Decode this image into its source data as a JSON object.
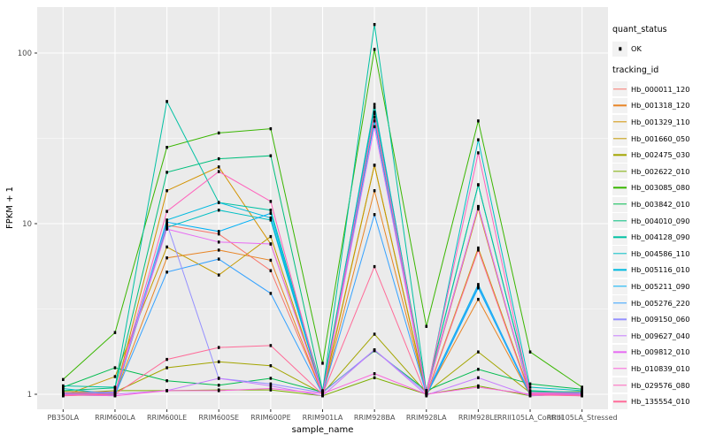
{
  "chart_data": {
    "type": "line",
    "title": "",
    "xlabel": "sample_name",
    "ylabel": "FPKM + 1",
    "y_scale": "log10",
    "y_ticks": [
      "1",
      "10",
      "100"
    ],
    "y_tick_values": [
      1,
      10,
      100
    ],
    "y_minor_values": [
      3.162,
      31.62
    ],
    "ylim": [
      0.82,
      184
    ],
    "grid": "on",
    "legend_position": "right",
    "panel_background": "#ebebeb",
    "gridline_color": "#ffffff",
    "tick_label_color": "#4d4d4d",
    "point_color": "#000000",
    "x_categories": [
      "PB350LA",
      "RRIM600LA",
      "RRIM600LE",
      "RRIM600SE",
      "RRIM600PE",
      "RRIM901LA",
      "RRIM928BA",
      "RRIM928LA",
      "RRIM928LE",
      "RRII105LA_Control",
      "RRII105LA_Stressed"
    ],
    "series": [
      {
        "name": "Hb_000011_120",
        "color": "#F8766D",
        "values": [
          1.0,
          0.99,
          9.8,
          8.7,
          5.3,
          1.0,
          42,
          1.05,
          12.5,
          1.0,
          0.99
        ]
      },
      {
        "name": "Hb_001318_120",
        "color": "#E88526",
        "values": [
          0.99,
          1.0,
          6.3,
          7.0,
          6.1,
          0.99,
          15.6,
          1.0,
          3.6,
          0.99,
          1.0
        ]
      },
      {
        "name": "Hb_001329_110",
        "color": "#D39200",
        "values": [
          1.02,
          1.01,
          15.6,
          21.5,
          7.6,
          1.02,
          22,
          1.01,
          12.2,
          1.0,
          1.02
        ]
      },
      {
        "name": "Hb_001660_050",
        "color": "#C49A00",
        "values": [
          0.98,
          1.27,
          7.3,
          5.0,
          8.4,
          1.0,
          22,
          0.99,
          7.2,
          1.01,
          0.98
        ]
      },
      {
        "name": "Hb_002475_030",
        "color": "#A3A500",
        "values": [
          1.04,
          1.03,
          1.43,
          1.55,
          1.47,
          1.01,
          2.25,
          1.02,
          1.77,
          1.02,
          1.04
        ]
      },
      {
        "name": "Hb_002622_010",
        "color": "#7CAE00",
        "values": [
          1.01,
          1.05,
          1.05,
          1.06,
          1.06,
          0.98,
          1.25,
          1.0,
          1.12,
          0.98,
          1.01
        ]
      },
      {
        "name": "Hb_003085_080",
        "color": "#39B600",
        "values": [
          1.22,
          2.3,
          28,
          34,
          36,
          1.52,
          105,
          2.5,
          40,
          1.77,
          1.1
        ]
      },
      {
        "name": "Hb_003842_010",
        "color": "#00BB4E",
        "values": [
          1.1,
          1.43,
          1.2,
          1.13,
          1.24,
          1.03,
          1.8,
          1.05,
          1.4,
          1.15,
          1.07
        ]
      },
      {
        "name": "Hb_004010_090",
        "color": "#00BF7D",
        "values": [
          1.05,
          1.09,
          20,
          24,
          25,
          1.05,
          48,
          1.05,
          16.9,
          1.05,
          1.02
        ]
      },
      {
        "name": "Hb_004128_090",
        "color": "#00C1A3",
        "values": [
          1.12,
          1.1,
          52,
          13.3,
          12,
          1.04,
          147,
          1.04,
          16.9,
          1.04,
          1.03
        ]
      },
      {
        "name": "Hb_004586_110",
        "color": "#00BFC4",
        "values": [
          1.08,
          1.0,
          9.5,
          12,
          10.5,
          1.0,
          50,
          1.0,
          31,
          1.1,
          1.05
        ]
      },
      {
        "name": "Hb_005116_010",
        "color": "#00BAE0",
        "values": [
          0.99,
          0.98,
          10.5,
          13.3,
          10.8,
          1.01,
          45,
          1.01,
          4.4,
          1.0,
          0.99
        ]
      },
      {
        "name": "Hb_005211_090",
        "color": "#00B0F6",
        "values": [
          1.0,
          1.02,
          10.2,
          9.0,
          11.5,
          0.99,
          40,
          0.98,
          4.2,
          0.99,
          1.0
        ]
      },
      {
        "name": "Hb_005276_220",
        "color": "#35A2FF",
        "values": [
          1.01,
          0.99,
          5.2,
          6.2,
          3.9,
          1.0,
          11.3,
          1.0,
          4.3,
          1.01,
          1.01
        ]
      },
      {
        "name": "Hb_009150_060",
        "color": "#9590FF",
        "values": [
          0.98,
          1.01,
          10.0,
          1.24,
          1.15,
          1.02,
          1.82,
          1.02,
          12.6,
          1.0,
          0.98
        ]
      },
      {
        "name": "Hb_009627_040",
        "color": "#C77CFF",
        "values": [
          1.0,
          1.0,
          1.05,
          1.24,
          1.12,
          0.98,
          1.82,
          0.99,
          1.25,
          0.98,
          1.0
        ]
      },
      {
        "name": "Hb_009812_010",
        "color": "#E76BF3",
        "values": [
          1.02,
          1.03,
          9.3,
          7.8,
          7.6,
          1.0,
          37,
          1.01,
          12.6,
          1.02,
          1.02
        ]
      },
      {
        "name": "Hb_010839_010",
        "color": "#FA62DB",
        "values": [
          0.99,
          0.98,
          1.05,
          1.05,
          1.08,
          1.01,
          1.32,
          1.0,
          1.1,
          1.0,
          0.99
        ]
      },
      {
        "name": "Hb_029576_080",
        "color": "#FF62BC",
        "values": [
          1.0,
          1.01,
          11.8,
          20.2,
          13.5,
          0.99,
          44,
          1.02,
          26,
          1.01,
          1.0
        ]
      },
      {
        "name": "Hb_135554_010",
        "color": "#FF6A98",
        "values": [
          0.98,
          1.0,
          1.6,
          1.88,
          1.93,
          1.0,
          5.6,
          0.98,
          7.0,
          0.99,
          0.98
        ]
      }
    ],
    "legend": {
      "quant_status_title": "quant_status",
      "quant_status_items": [
        {
          "label": "OK"
        }
      ],
      "tracking_id_title": "tracking_id"
    }
  }
}
